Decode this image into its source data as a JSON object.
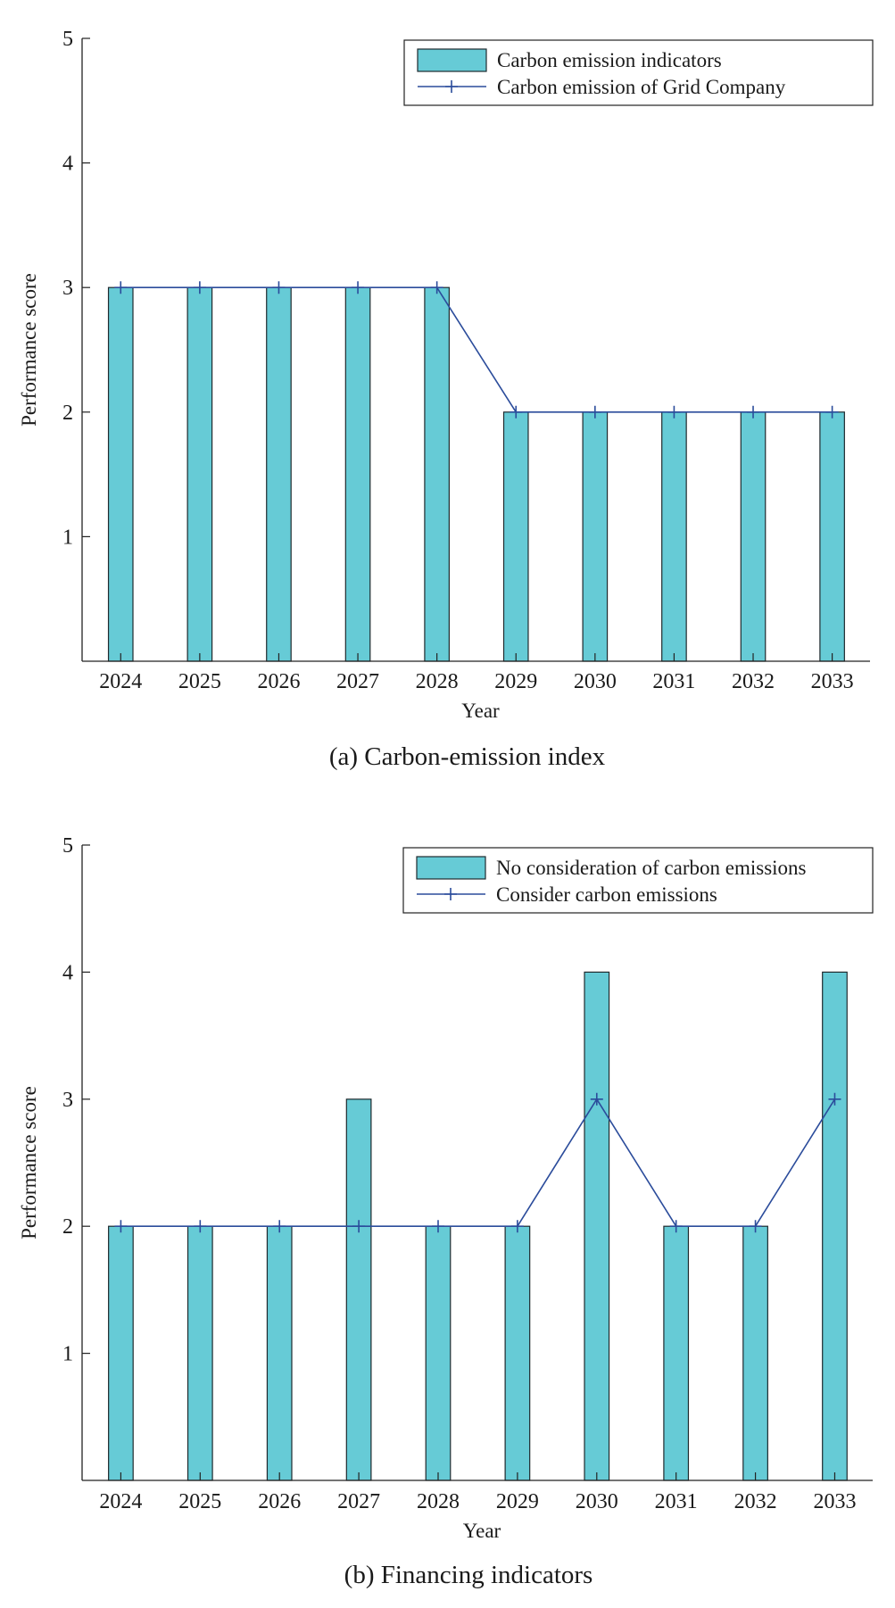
{
  "colors": {
    "bar_fill": "#66CBD6",
    "bar_edge": "#1F2A2E",
    "line": "#2B4C9B",
    "axis": "#222222",
    "text": "#1a1a1a"
  },
  "chart_data": [
    {
      "type": "bar",
      "caption": "(a) Carbon-emission index",
      "xlabel": "Year",
      "ylabel": "Performance score",
      "ylim": [
        0,
        5
      ],
      "yticks": [
        1,
        2,
        3,
        4,
        5
      ],
      "categories": [
        "2024",
        "2025",
        "2026",
        "2027",
        "2028",
        "2029",
        "2030",
        "2031",
        "2032",
        "2033"
      ],
      "legend_position": "top-right",
      "grid": false,
      "series": [
        {
          "name": "Carbon emission indicators",
          "kind": "bar",
          "values": [
            3,
            3,
            3,
            3,
            3,
            2,
            2,
            2,
            2,
            2
          ]
        },
        {
          "name": "Carbon emission of Grid Company",
          "kind": "line",
          "marker": "plus",
          "values": [
            3,
            3,
            3,
            3,
            3,
            2,
            2,
            2,
            2,
            2
          ]
        }
      ]
    },
    {
      "type": "bar",
      "caption": "(b) Financing indicators",
      "xlabel": "Year",
      "ylabel": "Performance score",
      "ylim": [
        0,
        5
      ],
      "yticks": [
        1,
        2,
        3,
        4,
        5
      ],
      "categories": [
        "2024",
        "2025",
        "2026",
        "2027",
        "2028",
        "2029",
        "2030",
        "2031",
        "2032",
        "2033"
      ],
      "legend_position": "top-right",
      "grid": false,
      "series": [
        {
          "name": "No consideration of carbon emissions",
          "kind": "bar",
          "values": [
            2,
            2,
            2,
            3,
            2,
            2,
            4,
            2,
            2,
            4
          ]
        },
        {
          "name": "Consider carbon emissions",
          "kind": "line",
          "marker": "plus",
          "values": [
            2,
            2,
            2,
            2,
            2,
            2,
            3,
            2,
            2,
            3
          ]
        }
      ]
    }
  ]
}
